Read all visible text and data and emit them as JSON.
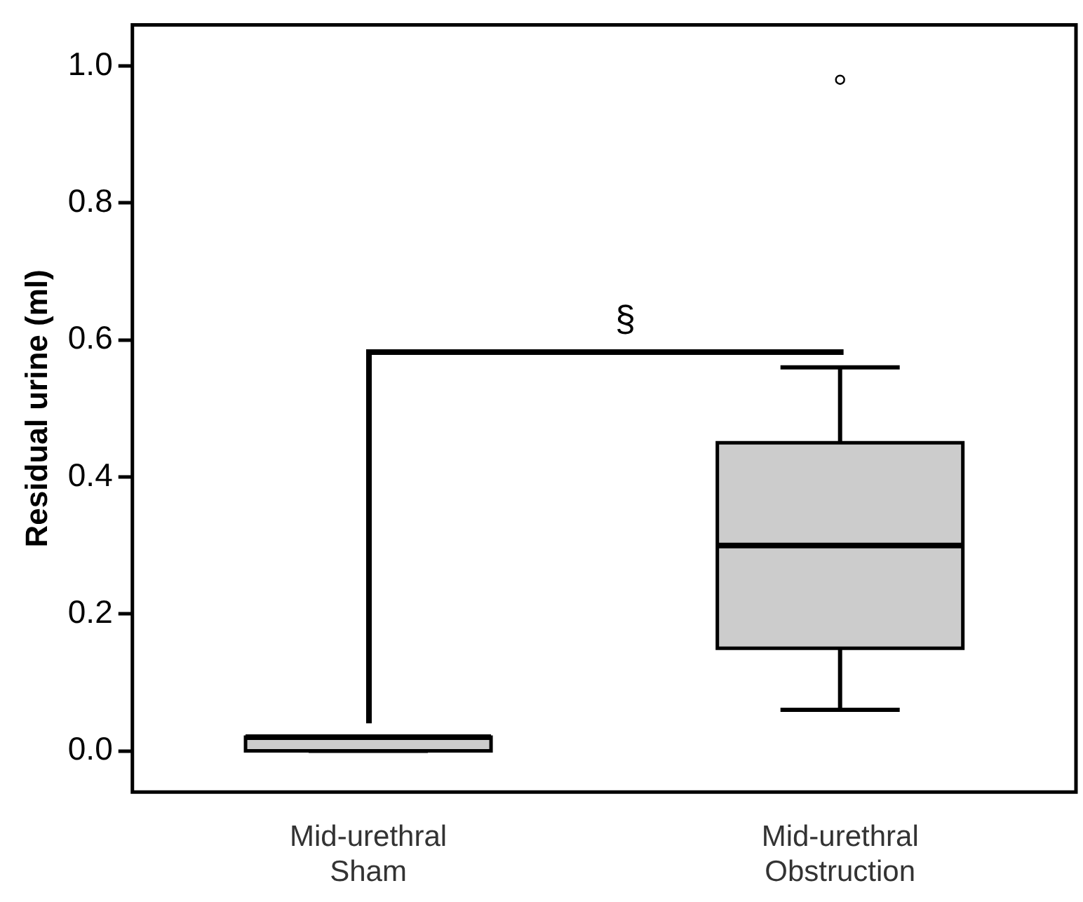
{
  "chart_data": {
    "type": "box",
    "ylabel": "Residual urine (ml)",
    "categories": [
      "Mid-urethral Sham",
      "Mid-urethral Obstruction"
    ],
    "boxes": [
      {
        "low": 0,
        "q1": 0,
        "median": 0.02,
        "q3": 0.02,
        "high": 0.02
      },
      {
        "low": 0.06,
        "q1": 0.15,
        "median": 0.3,
        "q3": 0.45,
        "high": 0.56,
        "outliers": [
          0.98
        ]
      }
    ],
    "ylim": [
      -0.06,
      1.06
    ],
    "yticks": [
      {
        "value": 0,
        "label": "0.0"
      },
      {
        "value": 0.2,
        "label": "0.2"
      },
      {
        "value": 0.4,
        "label": "0.4"
      },
      {
        "value": 0.6,
        "label": "0.6"
      },
      {
        "value": 0.8,
        "label": "0.8"
      },
      {
        "value": 1,
        "label": "1.0"
      }
    ],
    "annotations": [
      "§"
    ],
    "grid": false,
    "legend": false
  }
}
